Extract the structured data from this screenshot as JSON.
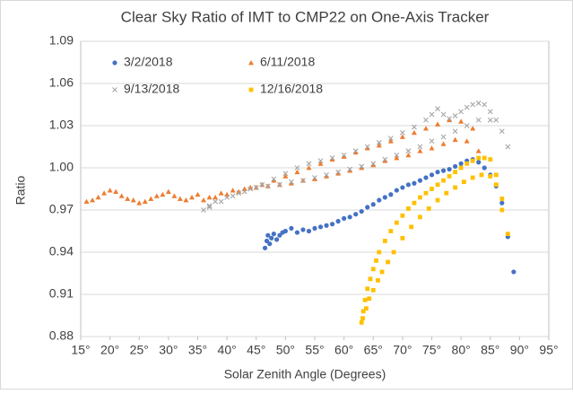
{
  "chart_data": {
    "type": "scatter",
    "title": "Clear Sky Ratio of IMT to CMP22 on One-Axis Tracker",
    "x_label": "Solar Zenith Angle (Degrees)",
    "y_label": "Ratio",
    "xlim": [
      15,
      95
    ],
    "ylim": [
      0.88,
      1.09
    ],
    "xticks": [
      {
        "value": 15,
        "label": "15°"
      },
      {
        "value": 20,
        "label": "20°"
      },
      {
        "value": 25,
        "label": "25°"
      },
      {
        "value": 30,
        "label": "30°"
      },
      {
        "value": 35,
        "label": "35°"
      },
      {
        "value": 40,
        "label": "40°"
      },
      {
        "value": 45,
        "label": "45°"
      },
      {
        "value": 50,
        "label": "50°"
      },
      {
        "value": 55,
        "label": "55°"
      },
      {
        "value": 60,
        "label": "60°"
      },
      {
        "value": 65,
        "label": "65°"
      },
      {
        "value": 70,
        "label": "70°"
      },
      {
        "value": 75,
        "label": "75°"
      },
      {
        "value": 80,
        "label": "80°"
      },
      {
        "value": 85,
        "label": "85°"
      },
      {
        "value": 90,
        "label": "90°"
      },
      {
        "value": 95,
        "label": "95°"
      }
    ],
    "yticks": [
      0.88,
      0.91,
      0.94,
      0.97,
      {
        "value": 1,
        "label": "1.00"
      },
      1.03,
      1.06,
      1.09
    ],
    "grid": true,
    "legend": "top-left",
    "series": [
      {
        "name": "3/2/2018",
        "color": "#4472c4",
        "marker": "circle",
        "x": [
          46.5,
          46.8,
          47,
          47.3,
          47.6,
          48,
          48.5,
          49,
          49.5,
          50,
          51,
          52,
          53,
          54,
          55,
          56,
          57,
          58,
          59,
          60,
          61,
          62,
          63,
          64,
          65,
          66,
          67,
          68,
          69,
          70,
          71,
          72,
          73,
          74,
          75,
          76,
          77,
          78,
          79,
          80,
          81,
          82,
          83,
          84,
          85,
          86,
          87,
          88,
          89
        ],
        "values": [
          0.943,
          0.948,
          0.952,
          0.946,
          0.95,
          0.953,
          0.949,
          0.952,
          0.954,
          0.955,
          0.957,
          0.954,
          0.956,
          0.955,
          0.957,
          0.958,
          0.959,
          0.96,
          0.962,
          0.964,
          0.965,
          0.967,
          0.969,
          0.972,
          0.974,
          0.977,
          0.979,
          0.981,
          0.984,
          0.986,
          0.988,
          0.989,
          0.991,
          0.993,
          0.995,
          0.997,
          0.998,
          0.999,
          1.001,
          1.003,
          1.005,
          1.006,
          1.004,
          1.0,
          0.995,
          0.987,
          0.975,
          0.951,
          0.926
        ]
      },
      {
        "name": "6/11/2018",
        "color": "#ed7d31",
        "marker": "triangle",
        "x": [
          16,
          17,
          18,
          19,
          20,
          21,
          22,
          23,
          24,
          25,
          26,
          27,
          28,
          29,
          30,
          31,
          32,
          33,
          34,
          35,
          37,
          39,
          41,
          43,
          45,
          47,
          49,
          51,
          53,
          55,
          57,
          59,
          61,
          63,
          65,
          67,
          69,
          71,
          73,
          75,
          77,
          79,
          81,
          83,
          36,
          38,
          40,
          42,
          44,
          46,
          48,
          50,
          52,
          54,
          56,
          58,
          60,
          62,
          64,
          66,
          68,
          70,
          72,
          74,
          76,
          78,
          80,
          82
        ],
        "values": [
          0.976,
          0.977,
          0.979,
          0.982,
          0.984,
          0.983,
          0.98,
          0.978,
          0.977,
          0.975,
          0.976,
          0.978,
          0.98,
          0.981,
          0.983,
          0.98,
          0.978,
          0.977,
          0.979,
          0.981,
          0.979,
          0.982,
          0.984,
          0.985,
          0.986,
          0.987,
          0.988,
          0.989,
          0.991,
          0.992,
          0.994,
          0.996,
          0.998,
          1.0,
          1.002,
          1.005,
          1.007,
          1.009,
          1.012,
          1.014,
          1.017,
          1.02,
          1.019,
          1.012,
          0.977,
          0.979,
          0.981,
          0.983,
          0.986,
          0.988,
          0.991,
          0.994,
          0.997,
          1.0,
          1.003,
          1.006,
          1.008,
          1.011,
          1.014,
          1.016,
          1.019,
          1.022,
          1.025,
          1.028,
          1.031,
          1.034,
          1.033,
          1.028
        ]
      },
      {
        "name": "9/13/2018",
        "color": "#a5a5a5",
        "marker": "x",
        "x": [
          36,
          37,
          38,
          40,
          42,
          44,
          46,
          48,
          50,
          52,
          54,
          56,
          58,
          60,
          62,
          64,
          66,
          68,
          70,
          72,
          74,
          75,
          76,
          77,
          78,
          79,
          80,
          81,
          82,
          83,
          84,
          85,
          86,
          87,
          88,
          37,
          39,
          41,
          43,
          45,
          47,
          49,
          51,
          53,
          55,
          57,
          59,
          61,
          63,
          65,
          67,
          69,
          71,
          73,
          75,
          77,
          79,
          81,
          83,
          85
        ],
        "values": [
          0.97,
          0.973,
          0.976,
          0.979,
          0.982,
          0.985,
          0.988,
          0.992,
          0.996,
          1.0,
          1.003,
          1.005,
          1.007,
          1.009,
          1.012,
          1.015,
          1.018,
          1.021,
          1.025,
          1.029,
          1.034,
          1.038,
          1.042,
          1.038,
          1.035,
          1.037,
          1.04,
          1.043,
          1.045,
          1.046,
          1.045,
          1.04,
          1.034,
          1.026,
          1.015,
          0.972,
          0.976,
          0.98,
          0.983,
          0.986,
          0.987,
          0.988,
          0.99,
          0.991,
          0.993,
          0.995,
          0.997,
          0.999,
          1.001,
          1.003,
          1.006,
          1.009,
          1.012,
          1.015,
          1.019,
          1.022,
          1.026,
          1.03,
          1.034,
          1.034
        ]
      },
      {
        "name": "12/16/2018",
        "color": "#ffc000",
        "marker": "square",
        "x": [
          63,
          63.3,
          63.6,
          64,
          64.5,
          65,
          65.5,
          66,
          67,
          68,
          69,
          70,
          71,
          72,
          73,
          74,
          75,
          76,
          77,
          78,
          79,
          80,
          81,
          82,
          83,
          84,
          85,
          86,
          87,
          88,
          63.2,
          63.8,
          64.3,
          65,
          65.8,
          66.5,
          67.5,
          68.5,
          70,
          71.5,
          73,
          74.5,
          76,
          77.5,
          79,
          80.5,
          82,
          83.5,
          85,
          86,
          87
        ],
        "values": [
          0.89,
          0.898,
          0.906,
          0.914,
          0.921,
          0.928,
          0.934,
          0.94,
          0.948,
          0.955,
          0.961,
          0.966,
          0.971,
          0.975,
          0.979,
          0.982,
          0.985,
          0.988,
          0.991,
          0.994,
          0.997,
          1.0,
          1.003,
          1.005,
          1.007,
          1.007,
          1.006,
          0.995,
          0.97,
          0.953,
          0.893,
          0.9,
          0.907,
          0.913,
          0.92,
          0.926,
          0.933,
          0.94,
          0.95,
          0.958,
          0.965,
          0.971,
          0.977,
          0.982,
          0.986,
          0.99,
          0.993,
          0.995,
          0.994,
          0.988,
          0.978
        ]
      }
    ]
  }
}
